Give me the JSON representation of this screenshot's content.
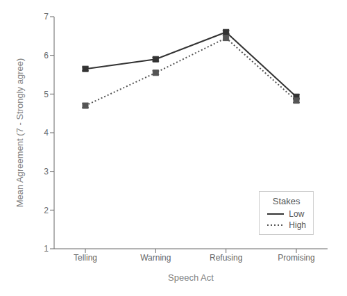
{
  "chart_data": {
    "type": "line",
    "categories": [
      "Telling",
      "Warning",
      "Refusing",
      "Promising"
    ],
    "series": [
      {
        "name": "Low",
        "color": "#333333",
        "line_style": "solid",
        "marker": "square",
        "values": [
          5.65,
          5.9,
          6.6,
          4.93
        ],
        "errors": [
          0.05,
          0.05,
          0.04,
          0.05
        ]
      },
      {
        "name": "High",
        "color": "#555555",
        "line_style": "dotted",
        "marker": "square",
        "values": [
          4.7,
          5.55,
          6.45,
          4.83
        ],
        "errors": [
          0.05,
          0.05,
          0.06,
          0.05
        ]
      }
    ],
    "xlabel": "Speech Act",
    "ylabel": "Mean Agreement (7 - Strongly agree)",
    "ylim": [
      1,
      7
    ],
    "yticks": [
      1,
      2,
      3,
      4,
      5,
      6,
      7
    ],
    "grid": false,
    "legend": "lower right",
    "legend_title": "Stakes"
  }
}
